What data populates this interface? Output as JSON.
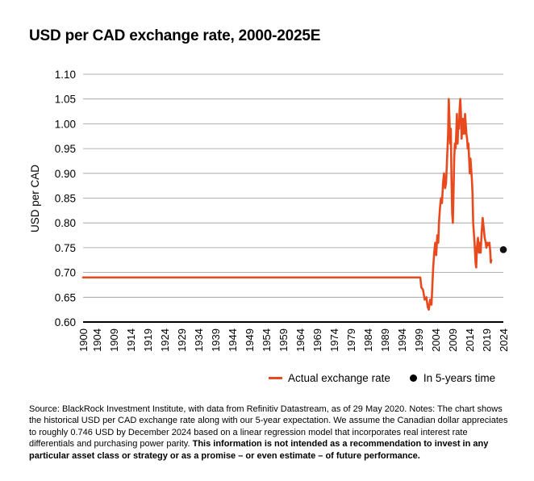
{
  "title": "USD per CAD exchange rate, 2000-2025E",
  "chart_data": {
    "type": "line",
    "ylabel": "USD per CAD",
    "xlabel": "",
    "ylim": [
      0.6,
      1.1
    ],
    "y_ticks": [
      "0.60",
      "0.65",
      "0.70",
      "0.75",
      "0.80",
      "0.85",
      "0.90",
      "0.95",
      "1.00",
      "1.05",
      "1.10"
    ],
    "x_ticks": [
      "1900",
      "1904",
      "1909",
      "1914",
      "1919",
      "1924",
      "1929",
      "1934",
      "1939",
      "1944",
      "1949",
      "1954",
      "1959",
      "1964",
      "1969",
      "1974",
      "1979",
      "1984",
      "1989",
      "1994",
      "1999",
      "2004",
      "2009",
      "2014",
      "2019",
      "2024"
    ],
    "grid": true,
    "legend_position": "bottom-right",
    "series": [
      {
        "name": "Actual exchange rate",
        "color": "#e8491d",
        "points": [
          [
            1900,
            0.69
          ],
          [
            1999.5,
            0.69
          ],
          [
            1999.8,
            0.67
          ],
          [
            2000.3,
            0.665
          ],
          [
            2000.8,
            0.645
          ],
          [
            2001.3,
            0.65
          ],
          [
            2001.7,
            0.63
          ],
          [
            2002.0,
            0.625
          ],
          [
            2002.4,
            0.645
          ],
          [
            2002.8,
            0.635
          ],
          [
            2003.0,
            0.665
          ],
          [
            2003.3,
            0.71
          ],
          [
            2003.6,
            0.74
          ],
          [
            2003.9,
            0.76
          ],
          [
            2004.2,
            0.735
          ],
          [
            2004.5,
            0.775
          ],
          [
            2004.8,
            0.76
          ],
          [
            2005.0,
            0.8
          ],
          [
            2005.3,
            0.83
          ],
          [
            2005.6,
            0.85
          ],
          [
            2005.9,
            0.84
          ],
          [
            2006.2,
            0.88
          ],
          [
            2006.5,
            0.9
          ],
          [
            2006.8,
            0.87
          ],
          [
            2007.1,
            0.88
          ],
          [
            2007.4,
            0.93
          ],
          [
            2007.7,
            0.98
          ],
          [
            2007.9,
            1.05
          ],
          [
            2008.1,
            1.01
          ],
          [
            2008.3,
            0.96
          ],
          [
            2008.5,
            0.99
          ],
          [
            2008.7,
            0.89
          ],
          [
            2008.9,
            0.82
          ],
          [
            2009.1,
            0.8
          ],
          [
            2009.3,
            0.86
          ],
          [
            2009.5,
            0.93
          ],
          [
            2009.7,
            0.96
          ],
          [
            2009.9,
            0.95
          ],
          [
            2010.1,
            0.98
          ],
          [
            2010.3,
            1.02
          ],
          [
            2010.5,
            0.96
          ],
          [
            2010.7,
            1.0
          ],
          [
            2010.9,
            0.99
          ],
          [
            2011.1,
            1.03
          ],
          [
            2011.3,
            1.05
          ],
          [
            2011.5,
            1.02
          ],
          [
            2011.7,
            0.97
          ],
          [
            2011.9,
            1.01
          ],
          [
            2012.1,
            0.98
          ],
          [
            2012.3,
            1.01
          ],
          [
            2012.5,
            0.98
          ],
          [
            2012.7,
            1.02
          ],
          [
            2012.9,
            1.0
          ],
          [
            2013.1,
            0.98
          ],
          [
            2013.3,
            0.97
          ],
          [
            2013.5,
            0.95
          ],
          [
            2013.7,
            0.96
          ],
          [
            2013.9,
            0.93
          ],
          [
            2014.1,
            0.9
          ],
          [
            2014.3,
            0.93
          ],
          [
            2014.5,
            0.91
          ],
          [
            2014.7,
            0.89
          ],
          [
            2014.9,
            0.86
          ],
          [
            2015.1,
            0.8
          ],
          [
            2015.3,
            0.78
          ],
          [
            2015.5,
            0.76
          ],
          [
            2015.8,
            0.72
          ],
          [
            2016.0,
            0.71
          ],
          [
            2016.2,
            0.75
          ],
          [
            2016.5,
            0.77
          ],
          [
            2016.8,
            0.74
          ],
          [
            2017.0,
            0.76
          ],
          [
            2017.3,
            0.74
          ],
          [
            2017.6,
            0.78
          ],
          [
            2017.9,
            0.81
          ],
          [
            2018.2,
            0.79
          ],
          [
            2018.5,
            0.77
          ],
          [
            2018.8,
            0.76
          ],
          [
            2019.0,
            0.75
          ],
          [
            2019.3,
            0.76
          ],
          [
            2019.6,
            0.755
          ],
          [
            2019.9,
            0.76
          ],
          [
            2020.1,
            0.745
          ],
          [
            2020.3,
            0.72
          ],
          [
            2020.45,
            0.725
          ]
        ]
      },
      {
        "name": "In 5-years time",
        "color": "#111111",
        "points": [
          [
            2024,
            0.746
          ]
        ]
      }
    ]
  },
  "legend": {
    "actual_label": "Actual exchange rate",
    "forecast_label": "In 5-years time"
  },
  "source": {
    "text": "Source: BlackRock Investment Institute, with data from Refinitiv Datastream, as of 29 May 2020. Notes: The chart shows the historical USD per CAD exchange rate along with our 5-year expectation. We assume the Canadian dollar appreciates to roughly 0.746 USD by December 2024 based on a linear regression model that incorporates real interest rate differentials and purchasing power parity. ",
    "disclaimer": "This information is not intended as a recommendation to invest in any particular asset class or strategy or as a promise – or even estimate – of future performance."
  }
}
